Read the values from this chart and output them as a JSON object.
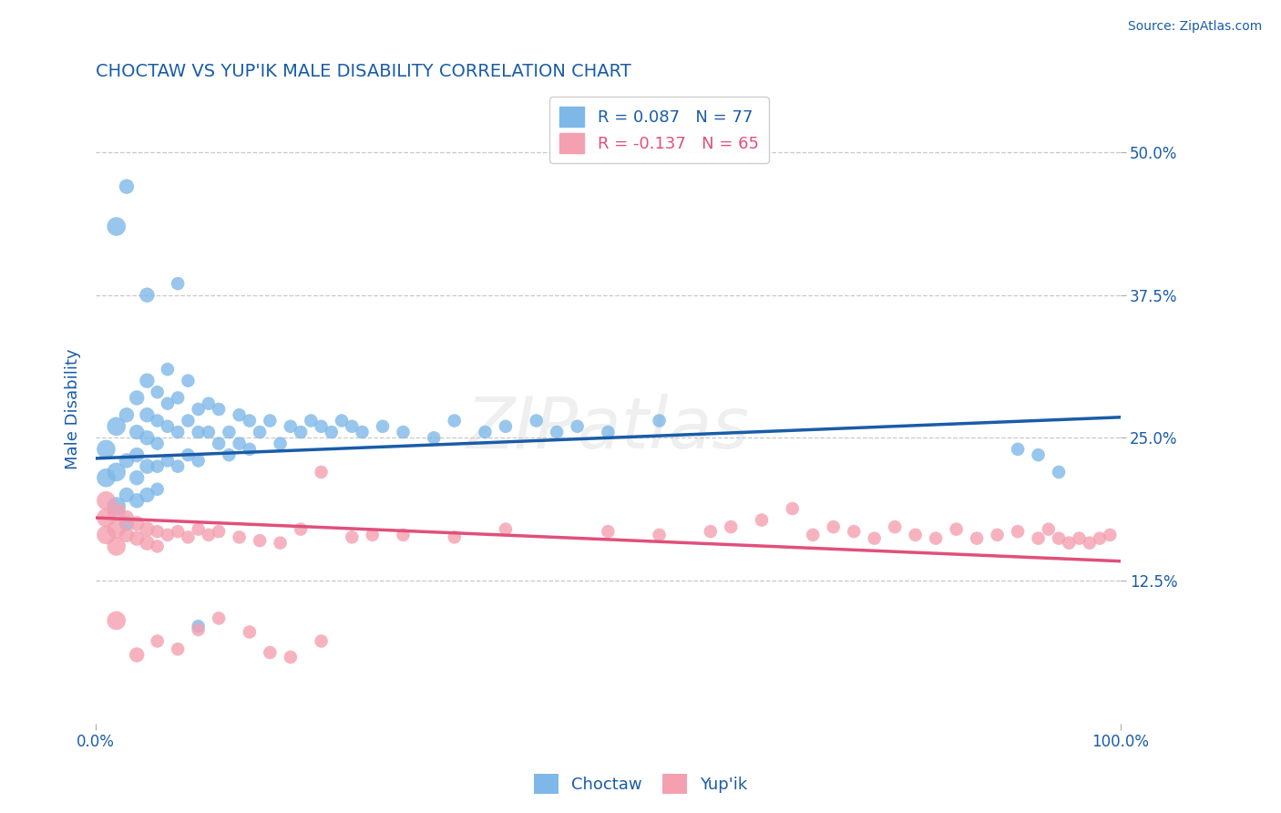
{
  "title": "CHOCTAW VS YUP'IK MALE DISABILITY CORRELATION CHART",
  "source": "Source: ZipAtlas.com",
  "ylabel": "Male Disability",
  "xlim": [
    0.0,
    1.0
  ],
  "ylim": [
    0.0,
    0.55
  ],
  "legend_bottom": [
    "Choctaw",
    "Yup'ik"
  ],
  "choctaw_R": 0.087,
  "choctaw_N": 77,
  "yupik_R": -0.137,
  "yupik_N": 65,
  "choctaw_color": "#7EB8E8",
  "yupik_color": "#F4A0B0",
  "choctaw_line_color": "#1A5CA8",
  "yupik_line_color": "#E0507A",
  "background_color": "#FFFFFF",
  "grid_color": "#C8C8C8",
  "title_color": "#1A5CA8",
  "axis_label_color": "#1A5CA8",
  "watermark": "ZIPatlas",
  "choctaw_line_x0": 0.0,
  "choctaw_line_y0": 0.232,
  "choctaw_line_x1": 1.0,
  "choctaw_line_y1": 0.268,
  "yupik_line_x0": 0.0,
  "yupik_line_y0": 0.18,
  "yupik_line_x1": 1.0,
  "yupik_line_y1": 0.142,
  "choctaw_x": [
    0.01,
    0.01,
    0.02,
    0.02,
    0.02,
    0.03,
    0.03,
    0.03,
    0.03,
    0.04,
    0.04,
    0.04,
    0.04,
    0.04,
    0.05,
    0.05,
    0.05,
    0.05,
    0.05,
    0.06,
    0.06,
    0.06,
    0.06,
    0.06,
    0.07,
    0.07,
    0.07,
    0.07,
    0.08,
    0.08,
    0.08,
    0.09,
    0.09,
    0.09,
    0.1,
    0.1,
    0.1,
    0.11,
    0.11,
    0.12,
    0.12,
    0.13,
    0.13,
    0.14,
    0.14,
    0.15,
    0.15,
    0.16,
    0.17,
    0.18,
    0.19,
    0.2,
    0.21,
    0.22,
    0.23,
    0.24,
    0.25,
    0.26,
    0.28,
    0.3,
    0.33,
    0.35,
    0.38,
    0.4,
    0.43,
    0.45,
    0.47,
    0.5,
    0.55,
    0.9,
    0.92,
    0.94,
    0.02,
    0.03,
    0.05,
    0.08,
    0.1
  ],
  "choctaw_y": [
    0.24,
    0.215,
    0.26,
    0.22,
    0.19,
    0.27,
    0.23,
    0.2,
    0.175,
    0.285,
    0.255,
    0.235,
    0.215,
    0.195,
    0.3,
    0.27,
    0.25,
    0.225,
    0.2,
    0.29,
    0.265,
    0.245,
    0.225,
    0.205,
    0.31,
    0.28,
    0.26,
    0.23,
    0.285,
    0.255,
    0.225,
    0.3,
    0.265,
    0.235,
    0.275,
    0.255,
    0.23,
    0.28,
    0.255,
    0.275,
    0.245,
    0.255,
    0.235,
    0.27,
    0.245,
    0.265,
    0.24,
    0.255,
    0.265,
    0.245,
    0.26,
    0.255,
    0.265,
    0.26,
    0.255,
    0.265,
    0.26,
    0.255,
    0.26,
    0.255,
    0.25,
    0.265,
    0.255,
    0.26,
    0.265,
    0.255,
    0.26,
    0.255,
    0.265,
    0.24,
    0.235,
    0.22,
    0.435,
    0.47,
    0.375,
    0.385,
    0.085
  ],
  "yupik_x": [
    0.01,
    0.01,
    0.01,
    0.02,
    0.02,
    0.02,
    0.03,
    0.03,
    0.04,
    0.04,
    0.05,
    0.05,
    0.06,
    0.06,
    0.07,
    0.08,
    0.09,
    0.1,
    0.11,
    0.12,
    0.14,
    0.16,
    0.18,
    0.2,
    0.22,
    0.25,
    0.27,
    0.3,
    0.35,
    0.4,
    0.5,
    0.55,
    0.6,
    0.62,
    0.65,
    0.68,
    0.7,
    0.72,
    0.74,
    0.76,
    0.78,
    0.8,
    0.82,
    0.84,
    0.86,
    0.88,
    0.9,
    0.92,
    0.93,
    0.94,
    0.95,
    0.96,
    0.97,
    0.98,
    0.99,
    0.02,
    0.04,
    0.06,
    0.08,
    0.1,
    0.12,
    0.15,
    0.17,
    0.19,
    0.22
  ],
  "yupik_y": [
    0.195,
    0.18,
    0.165,
    0.185,
    0.17,
    0.155,
    0.18,
    0.165,
    0.175,
    0.162,
    0.17,
    0.158,
    0.168,
    0.155,
    0.165,
    0.168,
    0.163,
    0.17,
    0.165,
    0.168,
    0.163,
    0.16,
    0.158,
    0.17,
    0.22,
    0.163,
    0.165,
    0.165,
    0.163,
    0.17,
    0.168,
    0.165,
    0.168,
    0.172,
    0.178,
    0.188,
    0.165,
    0.172,
    0.168,
    0.162,
    0.172,
    0.165,
    0.162,
    0.17,
    0.162,
    0.165,
    0.168,
    0.162,
    0.17,
    0.162,
    0.158,
    0.162,
    0.158,
    0.162,
    0.165,
    0.09,
    0.06,
    0.072,
    0.065,
    0.082,
    0.092,
    0.08,
    0.062,
    0.058,
    0.072
  ]
}
